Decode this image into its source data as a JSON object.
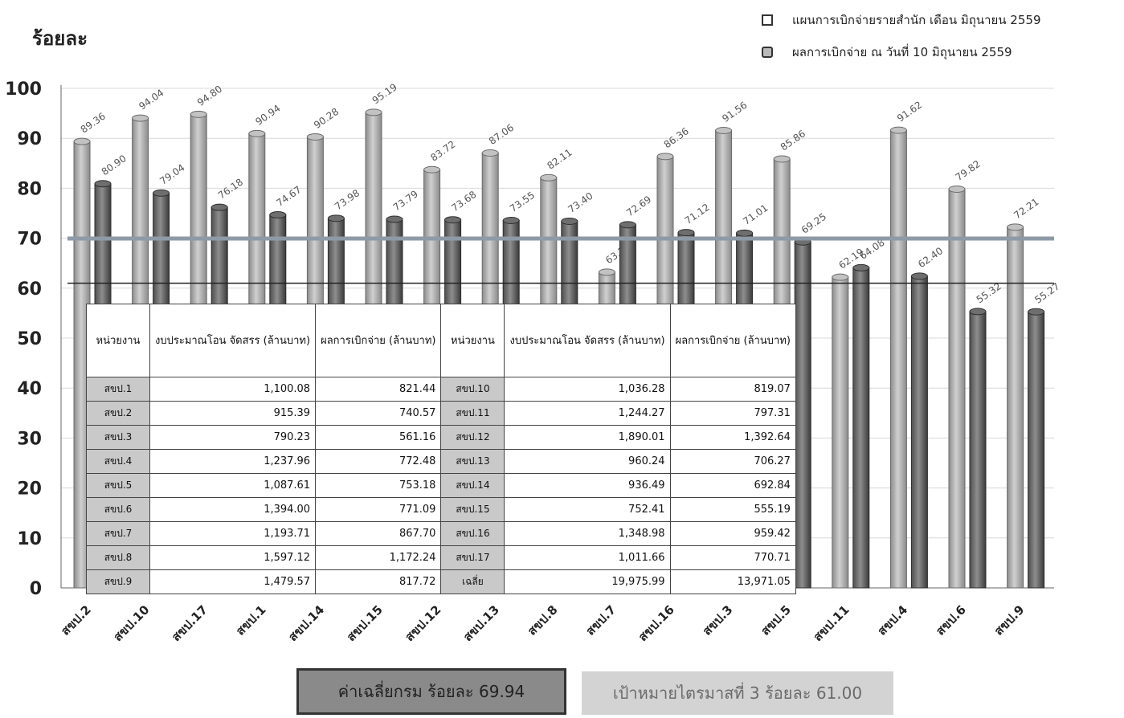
{
  "header": {
    "y_title": "ร้อยละ"
  },
  "legend": {
    "plan_label": "แผนการเบิกจ่ายรายสำนัก เดือน มิถุนายน 2559",
    "actual_label": "ผลการเบิกจ่าย ณ วันที่ 10 มิถุนายน 2559"
  },
  "stats": {
    "average_label": "ค่าเฉลี่ยกรม ร้อยละ 69.94",
    "target_label": "เป้าหมายไตรมาสที่ 3  ร้อยละ  61.00"
  },
  "chart_data": {
    "type": "bar",
    "categories": [
      "สขป.2",
      "สขป.10",
      "สขป.17",
      "สขป.1",
      "สขป.14",
      "สขป.15",
      "สขป.12",
      "สขป.13",
      "สขป.8",
      "สขป.7",
      "สขป.16",
      "สขป.3",
      "สขป.5",
      "สขป.11",
      "สขป.4",
      "สขป.6",
      "สขป.9"
    ],
    "series": [
      {
        "name": "แผนการเบิกจ่ายรายสำนัก เดือน มิถุนายน 2559",
        "color": "#b4b4b4",
        "values": [
          89.36,
          94.04,
          94.8,
          90.94,
          90.28,
          95.19,
          83.72,
          87.06,
          82.11,
          63.2,
          86.36,
          91.56,
          85.86,
          62.19,
          91.62,
          79.82,
          72.21
        ]
      },
      {
        "name": "ผลการเบิกจ่าย ณ วันที่ 10 มิถุนายน 2559",
        "color": "#7c7c7c",
        "values": [
          80.9,
          79.04,
          76.18,
          74.67,
          73.98,
          73.79,
          73.68,
          73.55,
          73.4,
          72.69,
          71.12,
          71.01,
          69.25,
          64.08,
          62.4,
          55.32,
          55.27
        ]
      }
    ],
    "reference_lines": [
      {
        "value": 69.94,
        "color": "#8e9aa6"
      },
      {
        "value": 61.0,
        "color": "#222222"
      }
    ],
    "ylim": [
      0,
      100
    ],
    "yticks": [
      0,
      10,
      20,
      30,
      40,
      50,
      60,
      70,
      80,
      90,
      100
    ],
    "grid": true,
    "legend_position": "top-right"
  },
  "table": {
    "headers": [
      "หน่วยงาน",
      "งบประมาณโอน จัดสรร (ล้านบาท)",
      "ผลการเบิกจ่าย (ล้านบาท)",
      "หน่วยงาน",
      "งบประมาณโอน จัดสรร (ล้านบาท)",
      "ผลการเบิกจ่าย (ล้านบาท)"
    ],
    "rows": [
      [
        "สขป.1",
        "1,100.08",
        "821.44",
        "สขป.10",
        "1,036.28",
        "819.07"
      ],
      [
        "สขป.2",
        "915.39",
        "740.57",
        "สขป.11",
        "1,244.27",
        "797.31"
      ],
      [
        "สขป.3",
        "790.23",
        "561.16",
        "สขป.12",
        "1,890.01",
        "1,392.64"
      ],
      [
        "สขป.4",
        "1,237.96",
        "772.48",
        "สขป.13",
        "960.24",
        "706.27"
      ],
      [
        "สขป.5",
        "1,087.61",
        "753.18",
        "สขป.14",
        "936.49",
        "692.84"
      ],
      [
        "สขป.6",
        "1,394.00",
        "771.09",
        "สขป.15",
        "752.41",
        "555.19"
      ],
      [
        "สขป.7",
        "1,193.71",
        "867.70",
        "สขป.16",
        "1,348.98",
        "959.42"
      ],
      [
        "สขป.8",
        "1,597.12",
        "1,172.24",
        "สขป.17",
        "1,011.66",
        "770.71"
      ],
      [
        "สขป.9",
        "1,479.57",
        "817.72",
        "เฉลี่ย",
        "19,975.99",
        "13,971.05"
      ]
    ]
  }
}
